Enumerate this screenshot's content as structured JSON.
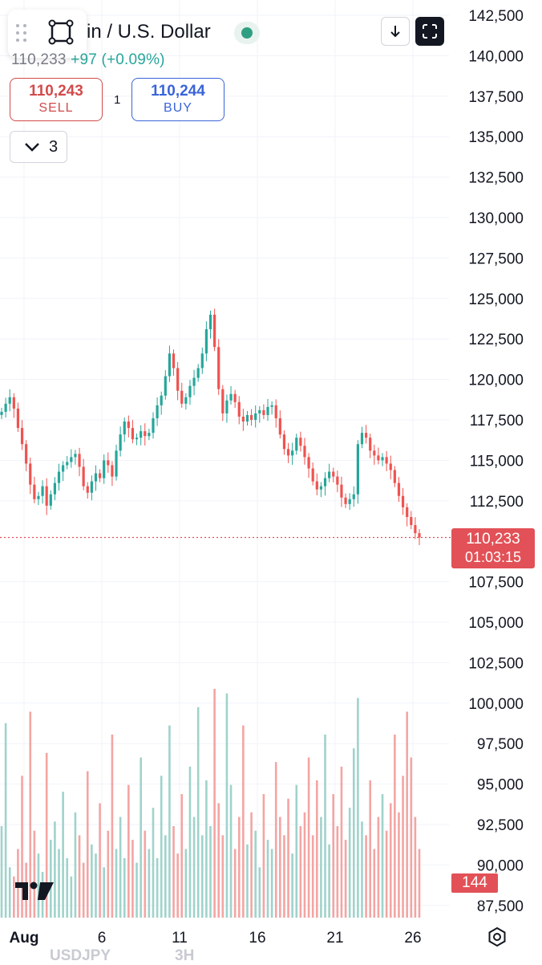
{
  "header": {
    "title": "in / U.S. Dollar",
    "price_change_current": "110,233",
    "price_change": "+97 (+0.09%)"
  },
  "trade": {
    "sell_price": "110,243",
    "sell_label": "SELL",
    "spread": "1",
    "buy_price": "110,244",
    "buy_label": "BUY"
  },
  "indicators_toggle": {
    "count": "3"
  },
  "current_price": {
    "price": "110,233",
    "countdown": "01:03:15",
    "color": "#e25157"
  },
  "volume_tag": "144",
  "footer": {
    "ghost_symbol": "USDJPY",
    "ghost_interval": "3H"
  },
  "icons": [
    "drag-handle-icon",
    "select-tool-icon",
    "live-status-icon",
    "download-icon",
    "fullscreen-icon",
    "chevron-down-icon",
    "tradingview-logo-icon",
    "settings-gear-icon"
  ],
  "chart_data": {
    "type": "candlestick",
    "title": "",
    "xlabel": "",
    "ylabel": "",
    "y_ticks": [
      "142,500",
      "140,000",
      "137,500",
      "135,000",
      "132,500",
      "130,000",
      "127,500",
      "125,000",
      "122,500",
      "120,000",
      "117,500",
      "115,000",
      "112,500",
      "107,500",
      "105,000",
      "102,500",
      "100,000",
      "97,500",
      "95,000",
      "92,500",
      "90,000",
      "87,500"
    ],
    "x_ticks": [
      "Aug",
      "6",
      "11",
      "16",
      "21",
      "26"
    ],
    "ylim": [
      86950,
      143500
    ],
    "up_color": "#26a69a",
    "down_color": "#ef5350",
    "price_close_series": [
      118000,
      118500,
      118900,
      118200,
      117000,
      116000,
      114800,
      113500,
      112600,
      112800,
      113400,
      112200,
      112900,
      113600,
      114300,
      114700,
      114900,
      115200,
      115400,
      114600,
      113400,
      113000,
      113700,
      114200,
      113900,
      115000,
      114700,
      114000,
      115600,
      116600,
      117400,
      117000,
      116300,
      116400,
      116800,
      116500,
      116700,
      117600,
      118400,
      119000,
      120200,
      121600,
      120700,
      119300,
      118500,
      118900,
      119600,
      120100,
      120700,
      121600,
      123100,
      124000,
      122000,
      119400,
      117900,
      118700,
      119100,
      118600,
      117700,
      117400,
      117800,
      117500,
      117900,
      118100,
      117800,
      118300,
      118400,
      117600,
      116600,
      115700,
      115300,
      115600,
      116400,
      115900,
      115200,
      114500,
      113700,
      113200,
      113400,
      113900,
      114300,
      114000,
      113500,
      112700,
      112300,
      112600,
      112900,
      116000,
      116700,
      116400,
      115600,
      115300,
      115000,
      115200,
      114800,
      114400,
      113600,
      112800,
      112100,
      111500,
      111000,
      110500,
      110233
    ],
    "volume_series": [
      40,
      85,
      22,
      18,
      30,
      62,
      24,
      90,
      38,
      28,
      20,
      72,
      34,
      42,
      30,
      55,
      26,
      18,
      46,
      36,
      24,
      64,
      32,
      28,
      50,
      22,
      38,
      80,
      30,
      44,
      26,
      58,
      34,
      24,
      70,
      38,
      30,
      48,
      26,
      62,
      36,
      84,
      40,
      28,
      54,
      30,
      66,
      44,
      92,
      36,
      60,
      40,
      100,
      50,
      36,
      98,
      58,
      30,
      44,
      84,
      32,
      46,
      38,
      22,
      54,
      34,
      30,
      68,
      44,
      36,
      52,
      28,
      58,
      40,
      46,
      70,
      36,
      60,
      44,
      80,
      32,
      54,
      40,
      66,
      34,
      48,
      74,
      96,
      42,
      36,
      60,
      30,
      44,
      54,
      38,
      50,
      80,
      46,
      62,
      90,
      70,
      44,
      30
    ]
  }
}
